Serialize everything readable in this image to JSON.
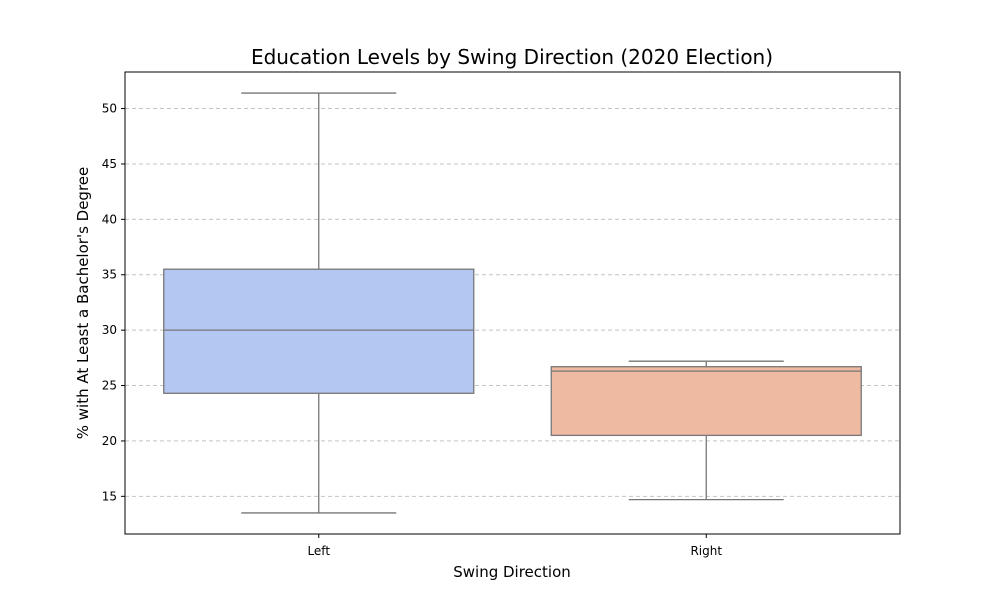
{
  "chart_data": {
    "type": "box",
    "title": "Education Levels by Swing Direction (2020 Election)",
    "xlabel": "Swing Direction",
    "ylabel": "% with At Least a Bachelor's Degree",
    "categories": [
      "Left",
      "Right"
    ],
    "boxes": [
      {
        "category": "Left",
        "whisker_low": 13.5,
        "q1": 24.3,
        "median": 30.0,
        "q3": 35.5,
        "whisker_high": 51.4,
        "color": "#b3c7f2"
      },
      {
        "category": "Right",
        "whisker_low": 14.7,
        "q1": 20.5,
        "median": 26.3,
        "q3": 26.7,
        "whisker_high": 27.2,
        "color": "#eebaa2"
      }
    ],
    "yticks": [
      15,
      20,
      25,
      30,
      35,
      40,
      45,
      50
    ],
    "ylim": [
      11.6,
      53.3
    ],
    "grid": "y-dashed",
    "edge_color": "#777777",
    "grid_color": "#c4c4c4"
  }
}
